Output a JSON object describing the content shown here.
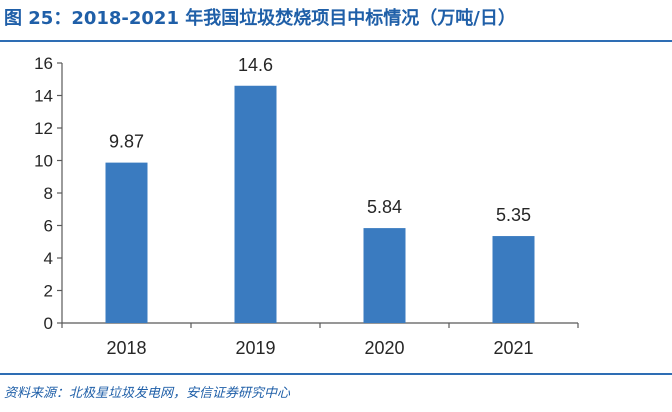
{
  "header": {
    "title": "图 25：2018-2021 年我国垃圾焚烧项目中标情况（万吨/日）"
  },
  "footer": {
    "source": "资料来源：北极星垃圾发电网，安信证券研究中心"
  },
  "colors": {
    "bar": "#3a7bc0",
    "title": "#1f5fa8",
    "rule": "#2e6db4",
    "axis": "#595959",
    "text": "#262626"
  },
  "chart_data": {
    "type": "bar",
    "categories": [
      "2018",
      "2019",
      "2020",
      "2021"
    ],
    "values": [
      9.87,
      14.6,
      5.84,
      5.35
    ],
    "data_labels": [
      "9.87",
      "14.6",
      "5.84",
      "5.35"
    ],
    "yticks": [
      "0",
      "2",
      "4",
      "6",
      "8",
      "10",
      "12",
      "14",
      "16"
    ],
    "ylim": [
      0,
      16
    ],
    "grid": false,
    "legend": "none",
    "title": "",
    "xlabel": "",
    "ylabel": ""
  }
}
